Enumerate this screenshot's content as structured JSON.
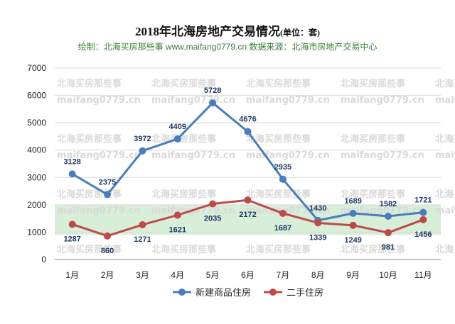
{
  "header": {
    "title": "2018年北海房地产交易情况",
    "unit": "(单位：套)",
    "subtitle": "绘制：北海买房那些事 www.maifang0779.cn   数据来源：北海市房地产交易中心"
  },
  "watermark": {
    "line1": "北海买房那些事",
    "line2": "maifang0779.cn"
  },
  "colors": {
    "series1": "#4a7ebb",
    "series2": "#be4b48",
    "band": "#d7eed8",
    "grid": "#d9d9d9"
  },
  "chart_data": {
    "type": "line",
    "title": "2018年北海房地产交易情况",
    "categories": [
      "1月",
      "2月",
      "3月",
      "4月",
      "5月",
      "6月",
      "7月",
      "8月",
      "9月",
      "10月",
      "11月"
    ],
    "ylim": [
      0,
      7000
    ],
    "yticks": [
      0,
      1000,
      2000,
      3000,
      4000,
      5000,
      6000,
      7000
    ],
    "highlight_band": [
      900,
      2000
    ],
    "grid": true,
    "legend_position": "bottom",
    "series": [
      {
        "name": "新建商品住房",
        "values": [
          3128,
          2375,
          3972,
          4409,
          5728,
          4676,
          2935,
          1430,
          1689,
          1582,
          1721
        ]
      },
      {
        "name": "二手住房",
        "values": [
          1287,
          860,
          1271,
          1621,
          2035,
          2172,
          1687,
          1339,
          1249,
          981,
          1456
        ]
      }
    ]
  }
}
